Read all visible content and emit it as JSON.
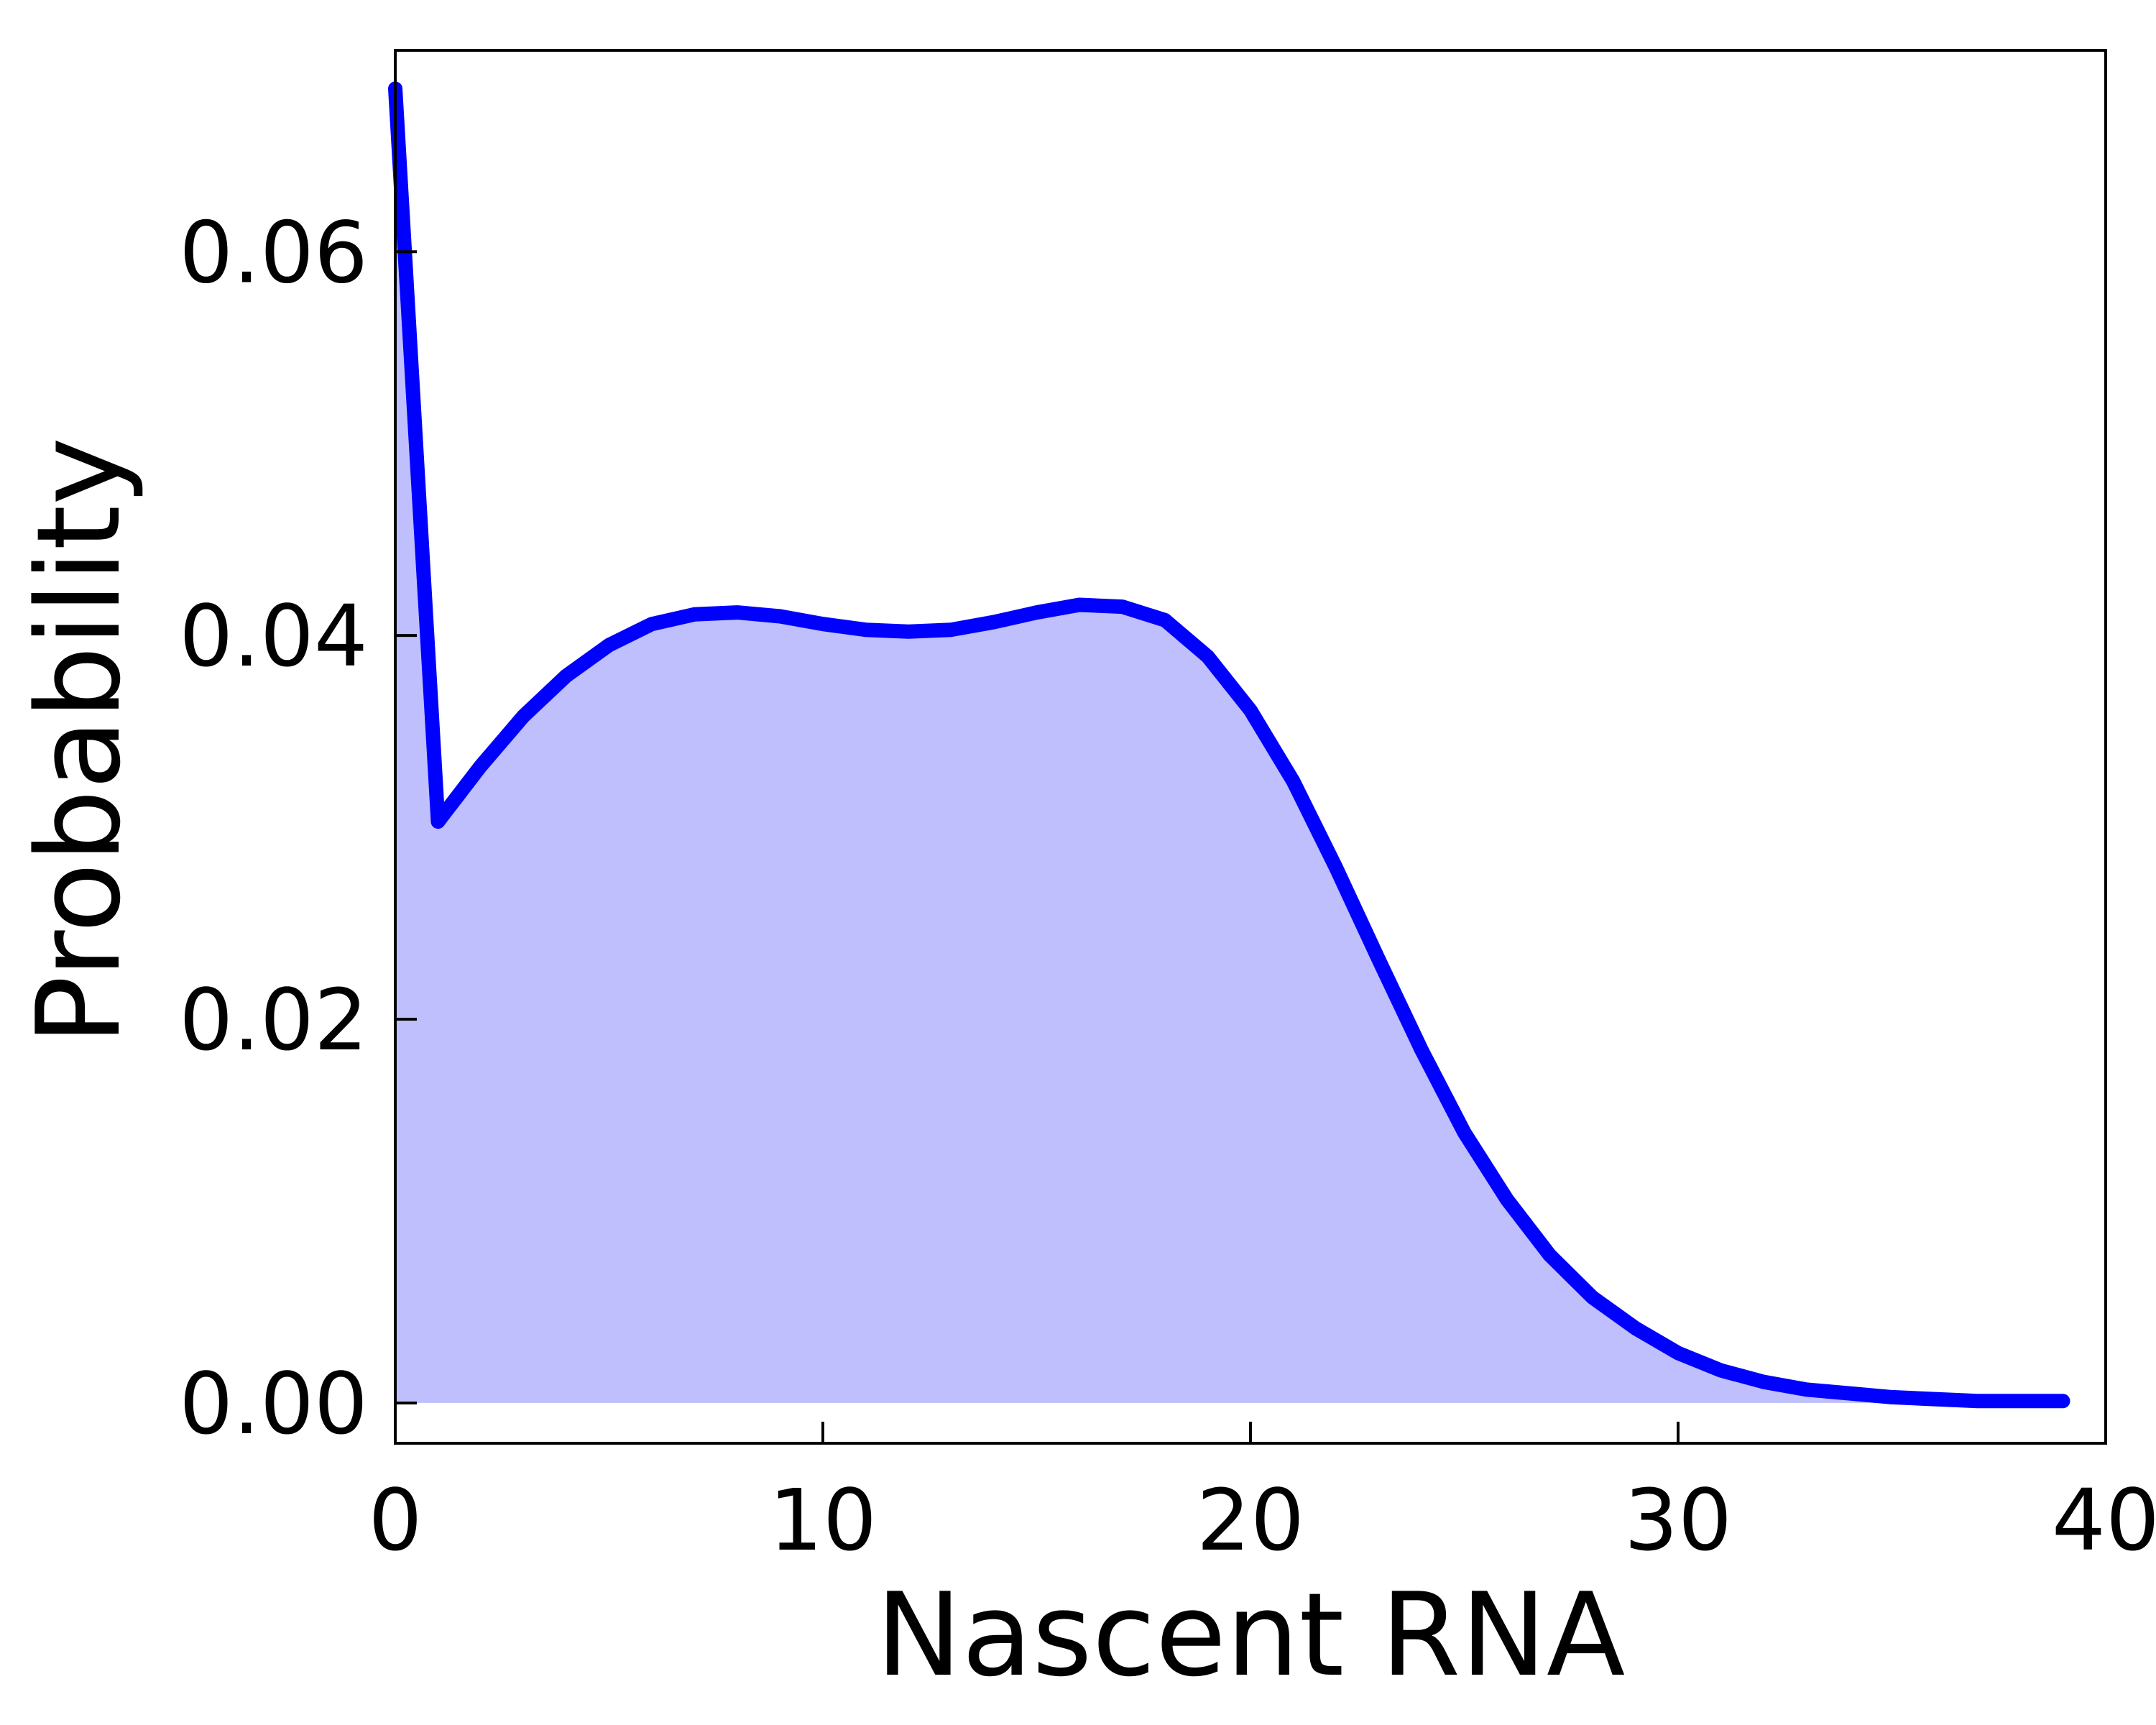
{
  "chart_data": {
    "type": "area",
    "title": "",
    "xlabel": "Nascent RNA",
    "ylabel": "Probability",
    "xlim": [
      0,
      40
    ],
    "ylim": [
      -0.0021,
      0.0705
    ],
    "xticks": [
      0,
      10,
      20,
      30,
      40
    ],
    "xtick_labels": [
      "0",
      "10",
      "20",
      "30",
      "40"
    ],
    "yticks": [
      0.0,
      0.02,
      0.04,
      0.06
    ],
    "ytick_labels": [
      "0.00",
      "0.02",
      "0.04",
      "0.06"
    ],
    "grid": false,
    "legend": "none",
    "line_color": "#0000ff",
    "fill_color": "#bfbffd",
    "x": [
      0,
      1,
      2,
      3,
      4,
      5,
      6,
      7,
      8,
      9,
      10,
      11,
      12,
      13,
      14,
      15,
      16,
      17,
      18,
      19,
      20,
      21,
      22,
      23,
      24,
      25,
      26,
      27,
      28,
      29,
      30,
      31,
      32,
      33,
      34,
      35,
      36,
      37,
      38,
      39
    ],
    "y": [
      0.0685,
      0.0303,
      0.0332,
      0.0358,
      0.0379,
      0.0395,
      0.0406,
      0.0411,
      0.0412,
      0.041,
      0.0406,
      0.0403,
      0.0402,
      0.0403,
      0.0407,
      0.0412,
      0.0416,
      0.0415,
      0.0408,
      0.0389,
      0.0361,
      0.0324,
      0.0279,
      0.0231,
      0.0184,
      0.0141,
      0.0106,
      0.0077,
      0.0055,
      0.0039,
      0.0026,
      0.0017,
      0.0011,
      0.0007,
      0.0005,
      0.0003,
      0.0002,
      0.0001,
      0.0001,
      0.0001
    ]
  }
}
